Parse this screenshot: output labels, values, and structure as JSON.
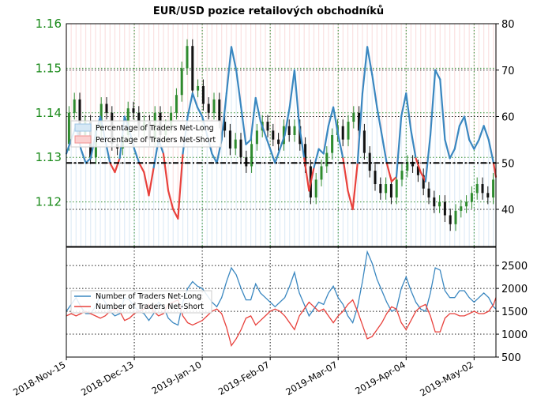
{
  "title": "EUR/USD pozice retailových obchodníků",
  "colors": {
    "long": "#3a87c0",
    "short": "#e8413c",
    "long_fill": "#d6e8f5",
    "short_fill": "#fbdcdc",
    "price_up": "#2e8b2e",
    "price_down": "#111111",
    "price_axis": "#1a8a1a",
    "grid_green": "#2e8b2e",
    "grid_black": "#000000"
  },
  "chart_data": [
    {
      "type": "line",
      "name": "top-panel",
      "price_axis": {
        "ticks": [
          "1.12",
          "1.13",
          "1.14",
          "1.15",
          "1.16"
        ],
        "ylim": [
          1.11,
          1.16
        ]
      },
      "pct_axis": {
        "ticks": [
          "40",
          "50",
          "60",
          "70",
          "80"
        ],
        "ylim": [
          32,
          80
        ]
      },
      "legend": [
        {
          "label": "Percentage of Traders Net-Long",
          "color": "#3a87c0"
        },
        {
          "label": "Percentage of Traders Net-Short",
          "color": "#e8413c"
        }
      ],
      "reference_line": 50,
      "x": [
        0,
        2,
        4,
        6,
        8,
        10,
        12,
        14,
        16,
        18,
        20,
        22,
        24,
        26,
        28,
        30,
        32,
        34,
        36,
        38,
        40,
        42,
        44,
        46,
        48,
        50,
        52,
        54,
        56,
        58,
        60,
        62,
        64,
        66,
        68,
        70,
        72,
        74,
        76,
        78,
        80,
        82,
        84,
        86,
        88,
        90,
        92,
        94,
        96,
        98,
        100,
        102,
        104,
        106,
        108,
        110,
        112,
        114,
        116,
        118,
        120,
        122,
        124,
        126,
        128,
        130,
        132,
        134,
        136,
        138,
        140,
        142,
        144,
        146,
        148,
        150,
        152,
        154,
        156,
        158,
        160,
        162,
        164,
        166,
        168,
        170,
        172,
        174,
        176,
        177
      ],
      "percent_long": [
        52,
        55,
        58,
        53,
        50,
        51,
        56,
        60,
        55,
        50,
        48,
        51,
        60,
        57,
        53,
        50,
        48,
        43,
        49,
        55,
        52,
        44,
        40,
        38,
        52,
        60,
        65,
        62,
        60,
        56,
        52,
        50,
        55,
        65,
        75,
        70,
        62,
        54,
        55,
        64,
        59,
        56,
        53,
        50,
        53,
        56,
        62,
        70,
        58,
        51,
        44,
        49,
        53,
        52,
        58,
        62,
        56,
        51,
        44,
        40,
        50,
        65,
        75,
        69,
        62,
        56,
        50,
        46,
        47,
        60,
        65,
        57,
        51,
        48,
        46,
        56,
        70,
        68,
        55,
        51,
        53,
        58,
        60,
        55,
        53,
        55,
        58,
        55,
        50,
        47
      ],
      "price": {
        "open": [
          1.133,
          1.14,
          1.143,
          1.135,
          1.138,
          1.13,
          1.136,
          1.142,
          1.14,
          1.133,
          1.132,
          1.135,
          1.141,
          1.14,
          1.136,
          1.138,
          1.134,
          1.14,
          1.135,
          1.137,
          1.14,
          1.144,
          1.15,
          1.155,
          1.145,
          1.146,
          1.142,
          1.14,
          1.143,
          1.138,
          1.136,
          1.132,
          1.134,
          1.13,
          1.128,
          1.133,
          1.136,
          1.138,
          1.136,
          1.134,
          1.133,
          1.137,
          1.135,
          1.137,
          1.133,
          1.128,
          1.121,
          1.125,
          1.128,
          1.131,
          1.135,
          1.137,
          1.134,
          1.138,
          1.14,
          1.136,
          1.131,
          1.127,
          1.124,
          1.122,
          1.124,
          1.121,
          1.125,
          1.127,
          1.129,
          1.128,
          1.126,
          1.123,
          1.121,
          1.119,
          1.12,
          1.117,
          1.115,
          1.118,
          1.119,
          1.12,
          1.122,
          1.124,
          1.122,
          1.121
        ],
        "close": [
          1.14,
          1.143,
          1.135,
          1.138,
          1.13,
          1.136,
          1.142,
          1.14,
          1.133,
          1.132,
          1.135,
          1.141,
          1.14,
          1.136,
          1.138,
          1.134,
          1.14,
          1.135,
          1.137,
          1.14,
          1.144,
          1.15,
          1.155,
          1.145,
          1.146,
          1.142,
          1.14,
          1.143,
          1.138,
          1.136,
          1.132,
          1.134,
          1.13,
          1.128,
          1.133,
          1.136,
          1.138,
          1.136,
          1.134,
          1.133,
          1.137,
          1.135,
          1.137,
          1.133,
          1.128,
          1.121,
          1.125,
          1.128,
          1.131,
          1.135,
          1.137,
          1.134,
          1.138,
          1.14,
          1.136,
          1.131,
          1.127,
          1.124,
          1.122,
          1.124,
          1.121,
          1.125,
          1.127,
          1.129,
          1.128,
          1.126,
          1.123,
          1.121,
          1.119,
          1.12,
          1.117,
          1.115,
          1.118,
          1.119,
          1.12,
          1.122,
          1.124,
          1.122,
          1.121,
          1.125
        ]
      }
    },
    {
      "type": "line",
      "name": "bottom-panel",
      "count_axis": {
        "ticks": [
          "500",
          "1000",
          "1500",
          "2000",
          "2500"
        ],
        "ylim": [
          500,
          2900
        ]
      },
      "legend": [
        {
          "label": "Number of Traders Net-Long",
          "color": "#3a87c0"
        },
        {
          "label": "Number of Traders Net-Short",
          "color": "#e8413c"
        }
      ],
      "x": [
        0,
        2,
        4,
        6,
        8,
        10,
        12,
        14,
        16,
        18,
        20,
        22,
        24,
        26,
        28,
        30,
        32,
        34,
        36,
        38,
        40,
        42,
        44,
        46,
        48,
        50,
        52,
        54,
        56,
        58,
        60,
        62,
        64,
        66,
        68,
        70,
        72,
        74,
        76,
        78,
        80,
        82,
        84,
        86,
        88,
        90,
        92,
        94,
        96,
        98,
        100,
        102,
        104,
        106,
        108,
        110,
        112,
        114,
        116,
        118,
        120,
        122,
        124,
        126,
        128,
        130,
        132,
        134,
        136,
        138,
        140,
        142,
        144,
        146,
        148,
        150,
        152,
        154,
        156,
        158,
        160,
        162,
        164,
        166,
        168,
        170,
        172,
        174,
        176,
        177
      ],
      "net_long": [
        1500,
        1650,
        1800,
        1600,
        1450,
        1450,
        1600,
        1850,
        1700,
        1500,
        1400,
        1450,
        1800,
        1750,
        1600,
        1500,
        1450,
        1300,
        1450,
        1700,
        1600,
        1350,
        1250,
        1200,
        1700,
        2000,
        2150,
        2050,
        2000,
        1850,
        1700,
        1600,
        1800,
        2150,
        2450,
        2300,
        2000,
        1750,
        1750,
        2100,
        1900,
        1800,
        1700,
        1600,
        1700,
        1800,
        2050,
        2350,
        1900,
        1650,
        1400,
        1550,
        1700,
        1650,
        1900,
        2050,
        1800,
        1650,
        1400,
        1250,
        1600,
        2150,
        2800,
        2550,
        2200,
        1950,
        1700,
        1500,
        1550,
        2000,
        2250,
        1950,
        1700,
        1550,
        1500,
        1900,
        2450,
        2400,
        1950,
        1800,
        1800,
        1950,
        1950,
        1800,
        1700,
        1800,
        1900,
        1800,
        1600,
        1550
      ],
      "net_short": [
        1400,
        1450,
        1400,
        1450,
        1500,
        1450,
        1400,
        1350,
        1400,
        1500,
        1550,
        1500,
        1300,
        1350,
        1450,
        1500,
        1550,
        1650,
        1500,
        1400,
        1450,
        1650,
        1700,
        1750,
        1400,
        1250,
        1200,
        1250,
        1300,
        1400,
        1500,
        1550,
        1450,
        1150,
        750,
        900,
        1100,
        1350,
        1400,
        1200,
        1300,
        1400,
        1500,
        1550,
        1500,
        1400,
        1250,
        1100,
        1400,
        1550,
        1700,
        1600,
        1500,
        1550,
        1400,
        1250,
        1400,
        1500,
        1650,
        1750,
        1500,
        1200,
        900,
        950,
        1100,
        1250,
        1450,
        1600,
        1550,
        1250,
        1100,
        1300,
        1500,
        1600,
        1650,
        1400,
        1050,
        1050,
        1350,
        1450,
        1450,
        1400,
        1400,
        1450,
        1500,
        1450,
        1450,
        1500,
        1650,
        1800
      ]
    }
  ],
  "x_axis": {
    "tick_labels": [
      "2018-Nov-15",
      "2018-Dec-13",
      "2019-Jan-10",
      "2019-Feb-07",
      "2019-Mar-07",
      "2019-Apr-04",
      "2019-May-02"
    ],
    "tick_positions": [
      0,
      28,
      56,
      84,
      112,
      140,
      168
    ],
    "xlim": [
      0,
      177
    ]
  }
}
